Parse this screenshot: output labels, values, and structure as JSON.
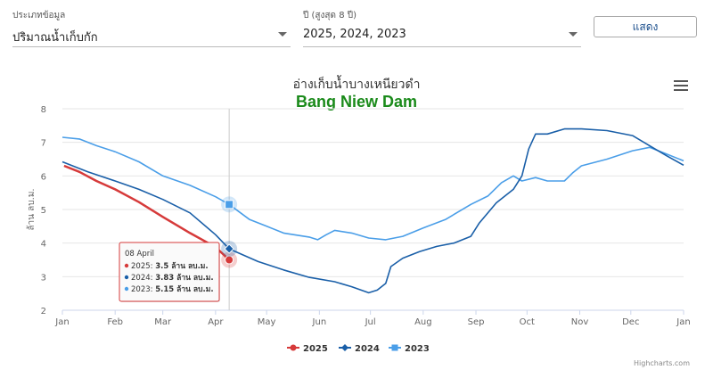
{
  "filters": {
    "type": {
      "label": "ประเภทข้อมูล",
      "value": "ปริมาณน้ำเก็บกัก"
    },
    "years": {
      "label": "ปี (สูงสุด 8 ปี)",
      "value": "2025, 2024, 2023"
    },
    "show_label": "แสดง"
  },
  "chart_data": {
    "type": "line",
    "title": "อ่างเก็บน้ำบางเหนียวดำ",
    "subtitle": "Bang Niew Dam",
    "ylabel": "ล้าน ลบ.ม.",
    "xlabel": "",
    "ylim": [
      2,
      8
    ],
    "yticks": [
      2,
      3,
      4,
      5,
      6,
      7,
      8
    ],
    "xlim": [
      0,
      365
    ],
    "xticks": [
      {
        "label": "Jan",
        "day": 0
      },
      {
        "label": "Feb",
        "day": 31
      },
      {
        "label": "Mar",
        "day": 59
      },
      {
        "label": "Apr",
        "day": 90
      },
      {
        "label": "May",
        "day": 120
      },
      {
        "label": "Jun",
        "day": 151
      },
      {
        "label": "Jul",
        "day": 181
      },
      {
        "label": "Aug",
        "day": 212
      },
      {
        "label": "Sep",
        "day": 243
      },
      {
        "label": "Oct",
        "day": 273
      },
      {
        "label": "Nov",
        "day": 304
      },
      {
        "label": "Dec",
        "day": 334
      },
      {
        "label": "Jan",
        "day": 365
      }
    ],
    "grid": true,
    "legend_position": "bottom",
    "series": [
      {
        "name": "2025",
        "color": "#d63a3a",
        "marker": "circle",
        "points": [
          [
            1,
            6.3
          ],
          [
            10,
            6.12
          ],
          [
            20,
            5.85
          ],
          [
            31,
            5.6
          ],
          [
            45,
            5.22
          ],
          [
            59,
            4.78
          ],
          [
            75,
            4.3
          ],
          [
            90,
            3.88
          ],
          [
            98,
            3.5
          ]
        ]
      },
      {
        "name": "2024",
        "color": "#1a5fa8",
        "marker": "diamond",
        "points": [
          [
            0,
            6.42
          ],
          [
            15,
            6.12
          ],
          [
            31,
            5.85
          ],
          [
            45,
            5.6
          ],
          [
            59,
            5.3
          ],
          [
            75,
            4.9
          ],
          [
            90,
            4.25
          ],
          [
            98,
            3.83
          ],
          [
            115,
            3.45
          ],
          [
            130,
            3.2
          ],
          [
            145,
            2.98
          ],
          [
            160,
            2.85
          ],
          [
            170,
            2.7
          ],
          [
            180,
            2.52
          ],
          [
            185,
            2.6
          ],
          [
            190,
            2.8
          ],
          [
            193,
            3.3
          ],
          [
            200,
            3.55
          ],
          [
            210,
            3.75
          ],
          [
            220,
            3.9
          ],
          [
            230,
            4.0
          ],
          [
            240,
            4.2
          ],
          [
            245,
            4.6
          ],
          [
            255,
            5.2
          ],
          [
            265,
            5.6
          ],
          [
            270,
            6.0
          ],
          [
            274,
            6.8
          ],
          [
            278,
            7.25
          ],
          [
            285,
            7.25
          ],
          [
            295,
            7.4
          ],
          [
            305,
            7.4
          ],
          [
            320,
            7.35
          ],
          [
            335,
            7.2
          ],
          [
            345,
            6.9
          ],
          [
            355,
            6.6
          ],
          [
            365,
            6.32
          ]
        ]
      },
      {
        "name": "2023",
        "color": "#4a9ee8",
        "marker": "square",
        "points": [
          [
            0,
            7.15
          ],
          [
            10,
            7.1
          ],
          [
            20,
            6.9
          ],
          [
            31,
            6.72
          ],
          [
            45,
            6.42
          ],
          [
            59,
            6.0
          ],
          [
            75,
            5.72
          ],
          [
            90,
            5.38
          ],
          [
            98,
            5.15
          ],
          [
            110,
            4.7
          ],
          [
            120,
            4.5
          ],
          [
            130,
            4.3
          ],
          [
            145,
            4.18
          ],
          [
            150,
            4.1
          ],
          [
            155,
            4.25
          ],
          [
            160,
            4.38
          ],
          [
            170,
            4.3
          ],
          [
            180,
            4.15
          ],
          [
            190,
            4.1
          ],
          [
            200,
            4.2
          ],
          [
            212,
            4.45
          ],
          [
            225,
            4.7
          ],
          [
            240,
            5.15
          ],
          [
            250,
            5.4
          ],
          [
            258,
            5.8
          ],
          [
            265,
            6.0
          ],
          [
            270,
            5.85
          ],
          [
            278,
            5.95
          ],
          [
            285,
            5.85
          ],
          [
            295,
            5.85
          ],
          [
            300,
            6.1
          ],
          [
            305,
            6.3
          ],
          [
            320,
            6.5
          ],
          [
            335,
            6.75
          ],
          [
            345,
            6.85
          ],
          [
            355,
            6.65
          ],
          [
            365,
            6.45
          ]
        ]
      }
    ],
    "tooltip": {
      "date": "08 April",
      "rows": [
        {
          "series": "2025",
          "value": "3.5 ล้าน ลบ.ม."
        },
        {
          "series": "2024",
          "value": "3.83 ล้าน ลบ.ม."
        },
        {
          "series": "2023",
          "value": "5.15 ล้าน ลบ.ม."
        }
      ]
    },
    "hover_day": 98,
    "credits": "Highcharts.com"
  }
}
